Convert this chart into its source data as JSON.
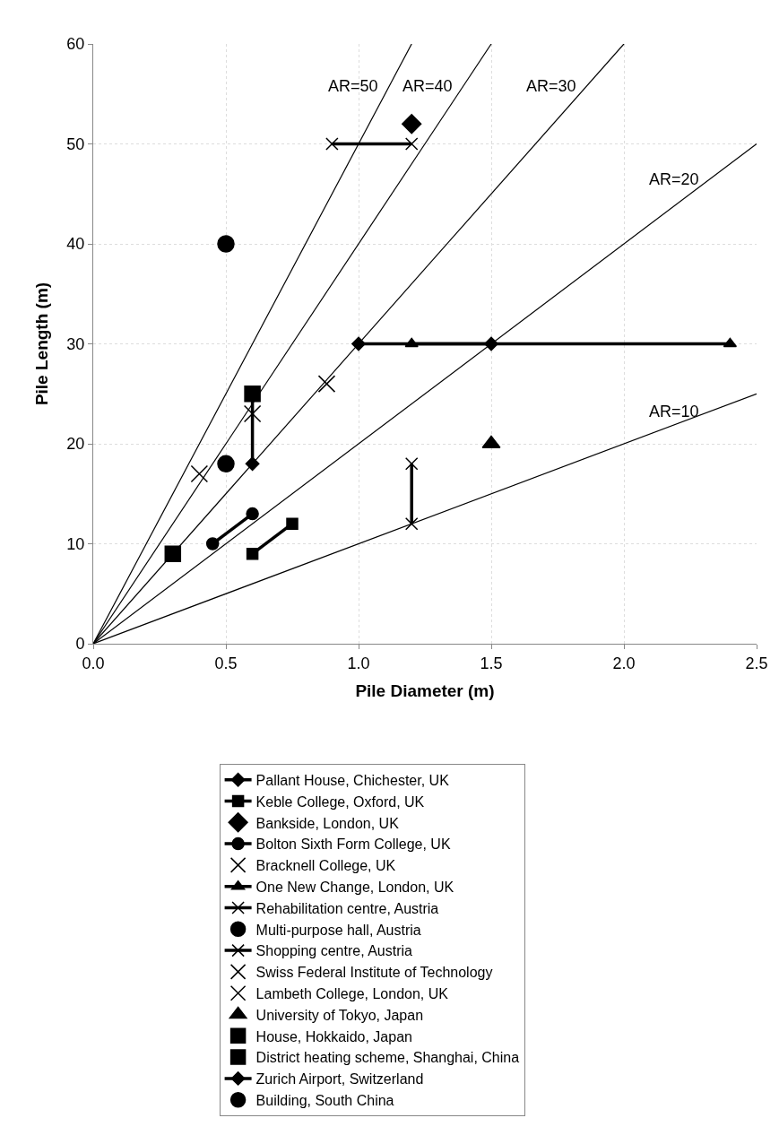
{
  "chart_data": {
    "type": "scatter",
    "xlabel": "Pile Diameter (m)",
    "ylabel": "Pile Length (m)",
    "xlim": [
      0,
      2.5
    ],
    "ylim": [
      0,
      60
    ],
    "xticks": [
      {
        "value": 0,
        "label": "0.0"
      },
      {
        "value": 0.5,
        "label": "0.5"
      },
      {
        "value": 1,
        "label": "1.0"
      },
      {
        "value": 1.5,
        "label": "1.5"
      },
      {
        "value": 2,
        "label": "2.0"
      },
      {
        "value": 2.5,
        "label": "2.5"
      }
    ],
    "yticks": [
      0,
      10,
      20,
      30,
      40,
      50,
      60
    ],
    "grid": true,
    "legend": "bottom",
    "series": [
      {
        "type": "line",
        "color": "#000000",
        "x": [
          0,
          1.2
        ],
        "values": [
          0,
          60
        ],
        "marker": "none"
      },
      {
        "type": "line",
        "color": "#000000",
        "x": [
          0,
          1.5
        ],
        "values": [
          0,
          60
        ],
        "marker": "none"
      },
      {
        "type": "line",
        "color": "#000000",
        "x": [
          0,
          2.0
        ],
        "values": [
          0,
          60
        ],
        "marker": "none"
      },
      {
        "type": "line",
        "color": "#000000",
        "x": [
          0,
          2.5
        ],
        "values": [
          0,
          50
        ],
        "marker": "none"
      },
      {
        "type": "line",
        "color": "#000000",
        "x": [
          0,
          2.5
        ],
        "values": [
          0,
          25
        ],
        "marker": "none"
      },
      {
        "name": "Pallant House, Chichester, UK",
        "type": "line",
        "color": "#000000",
        "x": [
          0.6,
          0.6
        ],
        "values": [
          25,
          18
        ],
        "marker": "diamond"
      },
      {
        "name": "Keble College, Oxford, UK",
        "type": "line",
        "color": "#000000",
        "x": [
          0.6,
          0.75
        ],
        "values": [
          9,
          12
        ],
        "marker": "square"
      },
      {
        "name": "Bankside, London, UK",
        "color": "#000000",
        "x": [
          1.2
        ],
        "values": [
          52
        ],
        "marker": "diamond"
      },
      {
        "name": "Bolton Sixth Form College, UK",
        "type": "line",
        "color": "#000000",
        "x": [
          0.45,
          0.6
        ],
        "values": [
          10,
          13
        ],
        "marker": "circle"
      },
      {
        "name": "Bracknell College, UK",
        "color": "#000000",
        "x": [
          0.4
        ],
        "values": [
          17
        ],
        "marker": "cross"
      },
      {
        "name": "One New Change, London, UK",
        "type": "line",
        "color": "#000000",
        "x": [
          1.2,
          2.4
        ],
        "values": [
          30,
          30
        ],
        "marker": "triangle"
      },
      {
        "name": "Rehabilitation centre, Austria",
        "type": "line",
        "color": "#000000",
        "x": [
          1.2,
          1.2
        ],
        "values": [
          12,
          18
        ],
        "marker": "cross"
      },
      {
        "name": "Multi-purpose hall, Austria",
        "color": "#000000",
        "x": [
          0.5
        ],
        "values": [
          18
        ],
        "marker": "circle"
      },
      {
        "name": "Shopping centre, Austria",
        "type": "line",
        "color": "#000000",
        "x": [
          0.9,
          1.2
        ],
        "values": [
          50,
          50
        ],
        "marker": "cross"
      },
      {
        "name": "Swiss Federal Institute of Technology",
        "color": "#000000",
        "x": [
          0.88
        ],
        "values": [
          26
        ],
        "marker": "cross"
      },
      {
        "name": "Lambeth College, London, UK",
        "color": "#000000",
        "x": [
          0.6
        ],
        "values": [
          23
        ],
        "marker": "cross"
      },
      {
        "name": "University of Tokyo, Japan",
        "color": "#000000",
        "x": [
          1.5
        ],
        "values": [
          20
        ],
        "marker": "triangle"
      },
      {
        "name": "House, Hokkaido, Japan",
        "color": "#000000",
        "x": [
          0.3
        ],
        "values": [
          9
        ],
        "marker": "square"
      },
      {
        "name": "District heating scheme, Shanghai, China",
        "color": "#000000",
        "x": [
          0.6
        ],
        "values": [
          25
        ],
        "marker": "square"
      },
      {
        "name": "Zurich Airport, Switzerland",
        "type": "line",
        "color": "#000000",
        "x": [
          1.0,
          1.5
        ],
        "values": [
          30,
          30
        ],
        "marker": "diamond"
      },
      {
        "name": "Building, South China",
        "color": "#000000",
        "x": [
          0.5
        ],
        "values": [
          40
        ],
        "marker": "circle"
      }
    ],
    "annotations": [
      "AR=50",
      "AR=40",
      "AR=30",
      "AR=20",
      "AR=10"
    ]
  }
}
